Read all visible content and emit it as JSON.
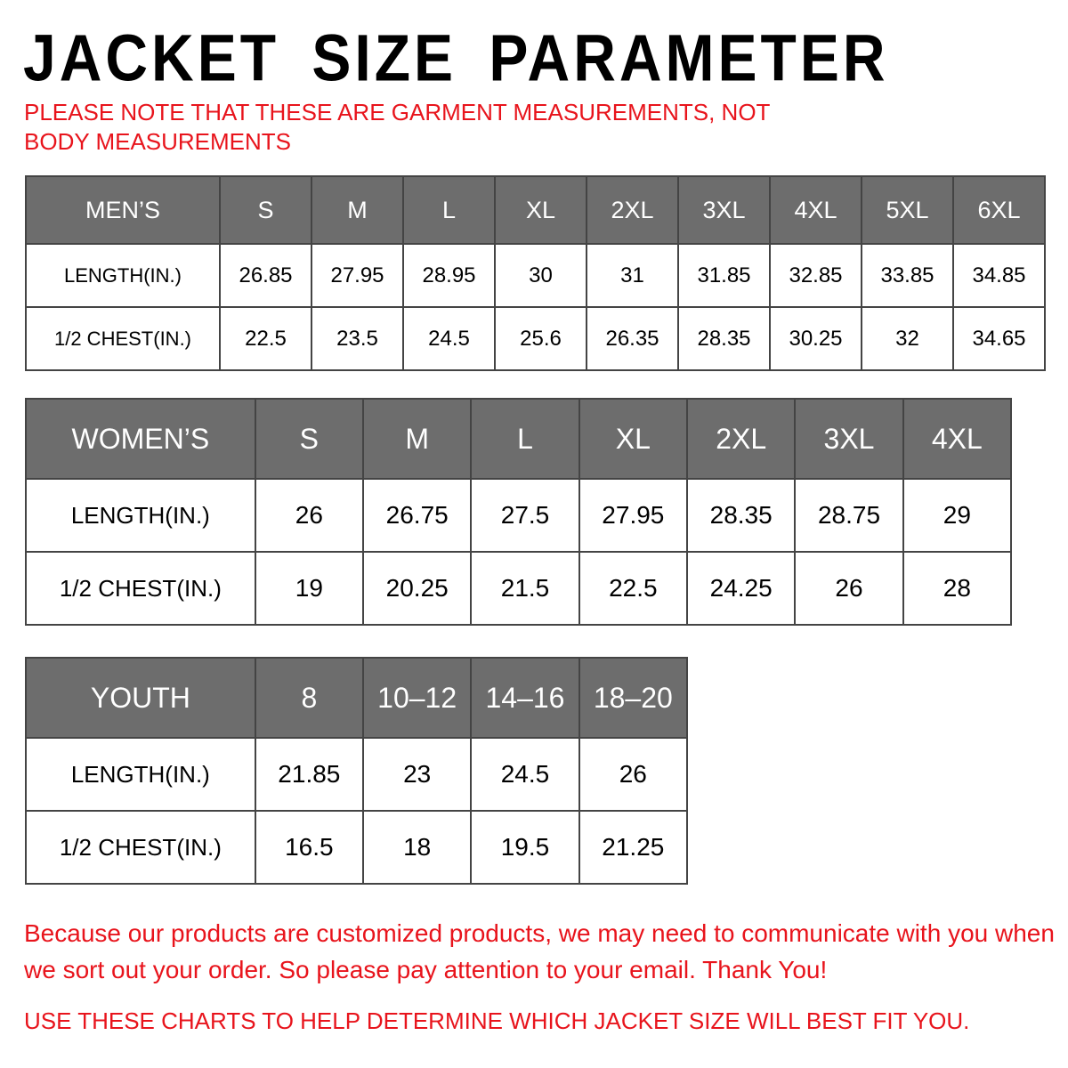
{
  "title": "JACKET SIZE PARAMETER",
  "note": "PLEASE NOTE THAT THESE ARE GARMENT MEASUREMENTS, NOT BODY MEASUREMENTS",
  "tables": [
    {
      "header": "MEN’S",
      "sizes": [
        "S",
        "M",
        "L",
        "XL",
        "2XL",
        "3XL",
        "4XL",
        "5XL",
        "6XL"
      ],
      "rows": [
        {
          "label": "LENGTH(IN.)",
          "values": [
            "26.85",
            "27.95",
            "28.95",
            "30",
            "31",
            "31.85",
            "32.85",
            "33.85",
            "34.85"
          ]
        },
        {
          "label": "1/2 CHEST(IN.)",
          "values": [
            "22.5",
            "23.5",
            "24.5",
            "25.6",
            "26.35",
            "28.35",
            "30.25",
            "32",
            "34.65"
          ]
        }
      ]
    },
    {
      "header": "WOMEN’S",
      "sizes": [
        "S",
        "M",
        "L",
        "XL",
        "2XL",
        "3XL",
        "4XL"
      ],
      "rows": [
        {
          "label": "LENGTH(IN.)",
          "values": [
            "26",
            "26.75",
            "27.5",
            "27.95",
            "28.35",
            "28.75",
            "29"
          ]
        },
        {
          "label": "1/2 CHEST(IN.)",
          "values": [
            "19",
            "20.25",
            "21.5",
            "22.5",
            "24.25",
            "26",
            "28"
          ]
        }
      ]
    },
    {
      "header": "YOUTH",
      "sizes": [
        "8",
        "10–12",
        "14–16",
        "18–20"
      ],
      "rows": [
        {
          "label": "LENGTH(IN.)",
          "values": [
            "21.85",
            "23",
            "24.5",
            "26"
          ]
        },
        {
          "label": "1/2 CHEST(IN.)",
          "values": [
            "16.5",
            "18",
            "19.5",
            "21.25"
          ]
        }
      ]
    }
  ],
  "footer": {
    "message": "Because our products are customized products, we may need to communicate with you when we sort out your order. So please pay attention to your email. Thank You!",
    "hint": "USE THESE CHARTS TO HELP DETERMINE WHICH JACKET SIZE WILL BEST FIT YOU."
  },
  "colors": {
    "header_bg": "#6d6d6d",
    "accent_red": "#e8141c"
  }
}
